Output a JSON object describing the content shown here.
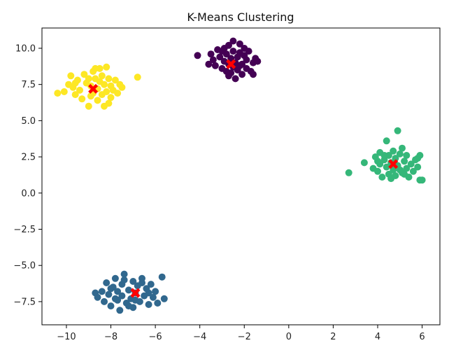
{
  "chart_data": {
    "type": "scatter",
    "title": "K-Means Clustering",
    "xlabel": "",
    "ylabel": "",
    "xlim": [
      -11.1,
      6.8
    ],
    "ylim": [
      -9.1,
      11.4
    ],
    "x_ticks": [
      -10,
      -8,
      -6,
      -4,
      -2,
      0,
      2,
      4,
      6
    ],
    "y_ticks": [
      -7.5,
      -5.0,
      -2.5,
      0.0,
      2.5,
      5.0,
      7.5,
      10.0
    ],
    "x_tick_labels": [
      "−10",
      "−8",
      "−6",
      "−4",
      "−2",
      "0",
      "2",
      "4",
      "6"
    ],
    "y_tick_labels": [
      "−7.5",
      "−5.0",
      "−2.5",
      "0.0",
      "2.5",
      "5.0",
      "7.5",
      "10.0"
    ],
    "grid": false,
    "centroid_marker": "X",
    "centroid_color": "#ff0000",
    "series": [
      {
        "color": "#440154",
        "points": [
          [
            -4.1,
            9.5
          ],
          [
            -3.5,
            9.6
          ],
          [
            -3.4,
            9.2
          ],
          [
            -3.3,
            8.8
          ],
          [
            -3.2,
            9.9
          ],
          [
            -3.1,
            9.4
          ],
          [
            -3.0,
            8.6
          ],
          [
            -2.9,
            10.0
          ],
          [
            -2.9,
            9.1
          ],
          [
            -2.8,
            8.4
          ],
          [
            -2.8,
            9.6
          ],
          [
            -2.7,
            10.2
          ],
          [
            -2.7,
            8.9
          ],
          [
            -2.6,
            9.3
          ],
          [
            -2.6,
            8.3
          ],
          [
            -2.5,
            10.5
          ],
          [
            -2.5,
            9.8
          ],
          [
            -2.5,
            8.7
          ],
          [
            -2.4,
            9.0
          ],
          [
            -2.4,
            7.9
          ],
          [
            -2.3,
            9.4
          ],
          [
            -2.3,
            8.5
          ],
          [
            -2.2,
            10.3
          ],
          [
            -2.2,
            9.7
          ],
          [
            -2.1,
            8.9
          ],
          [
            -2.1,
            8.2
          ],
          [
            -2.0,
            9.5
          ],
          [
            -2.0,
            10.0
          ],
          [
            -1.9,
            8.6
          ],
          [
            -1.9,
            9.2
          ],
          [
            -1.8,
            9.8
          ],
          [
            -1.7,
            8.4
          ],
          [
            -1.6,
            9.0
          ],
          [
            -1.6,
            8.2
          ],
          [
            -1.5,
            9.3
          ],
          [
            -1.4,
            9.1
          ],
          [
            -3.6,
            8.9
          ],
          [
            -3.0,
            9.8
          ],
          [
            -2.7,
            8.1
          ],
          [
            -2.2,
            8.8
          ]
        ]
      },
      {
        "color": "#31688e",
        "points": [
          [
            -8.7,
            -6.9
          ],
          [
            -8.6,
            -7.2
          ],
          [
            -8.4,
            -6.8
          ],
          [
            -8.3,
            -7.5
          ],
          [
            -8.2,
            -6.2
          ],
          [
            -8.1,
            -7.0
          ],
          [
            -8.0,
            -7.8
          ],
          [
            -7.9,
            -6.5
          ],
          [
            -7.8,
            -7.3
          ],
          [
            -7.8,
            -5.9
          ],
          [
            -7.7,
            -6.8
          ],
          [
            -7.6,
            -8.1
          ],
          [
            -7.5,
            -7.1
          ],
          [
            -7.5,
            -6.3
          ],
          [
            -7.4,
            -5.6
          ],
          [
            -7.3,
            -7.6
          ],
          [
            -7.2,
            -6.7
          ],
          [
            -7.1,
            -7.3
          ],
          [
            -7.0,
            -6.1
          ],
          [
            -7.0,
            -7.9
          ],
          [
            -6.9,
            -6.9
          ],
          [
            -6.8,
            -6.4
          ],
          [
            -6.7,
            -7.5
          ],
          [
            -6.6,
            -5.9
          ],
          [
            -6.5,
            -7.1
          ],
          [
            -6.4,
            -6.6
          ],
          [
            -6.3,
            -7.7
          ],
          [
            -6.2,
            -6.3
          ],
          [
            -6.1,
            -7.2
          ],
          [
            -6.0,
            -6.8
          ],
          [
            -5.9,
            -7.6
          ],
          [
            -5.7,
            -5.8
          ],
          [
            -5.6,
            -7.3
          ],
          [
            -6.6,
            -6.2
          ],
          [
            -7.2,
            -7.8
          ],
          [
            -8.0,
            -6.6
          ],
          [
            -6.9,
            -7.4
          ],
          [
            -7.4,
            -6.0
          ],
          [
            -6.3,
            -6.9
          ],
          [
            -7.7,
            -7.4
          ]
        ]
      },
      {
        "color": "#35b779",
        "points": [
          [
            2.7,
            1.4
          ],
          [
            3.4,
            2.1
          ],
          [
            3.8,
            1.7
          ],
          [
            3.9,
            2.5
          ],
          [
            4.0,
            1.5
          ],
          [
            4.1,
            2.0
          ],
          [
            4.1,
            2.8
          ],
          [
            4.2,
            1.1
          ],
          [
            4.3,
            2.3
          ],
          [
            4.4,
            1.8
          ],
          [
            4.4,
            3.6
          ],
          [
            4.5,
            2.6
          ],
          [
            4.5,
            1.3
          ],
          [
            4.6,
            2.1
          ],
          [
            4.7,
            1.6
          ],
          [
            4.7,
            2.9
          ],
          [
            4.8,
            1.2
          ],
          [
            4.8,
            2.4
          ],
          [
            4.9,
            4.3
          ],
          [
            4.9,
            1.9
          ],
          [
            5.0,
            2.7
          ],
          [
            5.1,
            1.4
          ],
          [
            5.1,
            3.1
          ],
          [
            5.2,
            2.2
          ],
          [
            5.3,
            1.7
          ],
          [
            5.3,
            2.6
          ],
          [
            5.4,
            1.1
          ],
          [
            5.5,
            2.0
          ],
          [
            5.6,
            1.5
          ],
          [
            5.7,
            2.3
          ],
          [
            5.8,
            1.8
          ],
          [
            5.9,
            2.6
          ],
          [
            5.9,
            0.9
          ],
          [
            6.0,
            0.9
          ],
          [
            5.8,
            2.4
          ],
          [
            4.0,
            2.2
          ],
          [
            4.6,
            1.0
          ],
          [
            5.2,
            1.3
          ],
          [
            4.3,
            2.6
          ],
          [
            5.0,
            1.6
          ]
        ]
      },
      {
        "color": "#fde725",
        "points": [
          [
            -10.4,
            6.9
          ],
          [
            -10.1,
            7.0
          ],
          [
            -9.9,
            7.5
          ],
          [
            -9.8,
            8.1
          ],
          [
            -9.7,
            7.3
          ],
          [
            -9.6,
            6.8
          ],
          [
            -9.5,
            7.8
          ],
          [
            -9.4,
            7.1
          ],
          [
            -9.3,
            6.5
          ],
          [
            -9.2,
            8.2
          ],
          [
            -9.1,
            7.6
          ],
          [
            -9.0,
            6.0
          ],
          [
            -8.9,
            7.4
          ],
          [
            -8.8,
            8.4
          ],
          [
            -8.8,
            6.9
          ],
          [
            -8.7,
            7.9
          ],
          [
            -8.6,
            7.2
          ],
          [
            -8.6,
            6.4
          ],
          [
            -8.5,
            8.6
          ],
          [
            -8.5,
            7.7
          ],
          [
            -8.4,
            6.8
          ],
          [
            -8.4,
            8.1
          ],
          [
            -8.3,
            7.5
          ],
          [
            -8.3,
            6.0
          ],
          [
            -8.2,
            8.7
          ],
          [
            -8.2,
            7.0
          ],
          [
            -8.1,
            7.9
          ],
          [
            -8.0,
            6.6
          ],
          [
            -8.0,
            7.4
          ],
          [
            -7.9,
            7.1
          ],
          [
            -7.8,
            7.8
          ],
          [
            -7.7,
            6.9
          ],
          [
            -7.6,
            7.5
          ],
          [
            -7.5,
            7.3
          ],
          [
            -6.8,
            8.0
          ],
          [
            -8.7,
            8.6
          ],
          [
            -9.0,
            7.9
          ],
          [
            -8.1,
            6.2
          ],
          [
            -9.6,
            7.6
          ],
          [
            -8.9,
            6.7
          ]
        ]
      }
    ],
    "centroids": [
      [
        -2.6,
        8.9
      ],
      [
        -6.9,
        -6.9
      ],
      [
        4.7,
        2.0
      ],
      [
        -8.8,
        7.2
      ]
    ]
  }
}
